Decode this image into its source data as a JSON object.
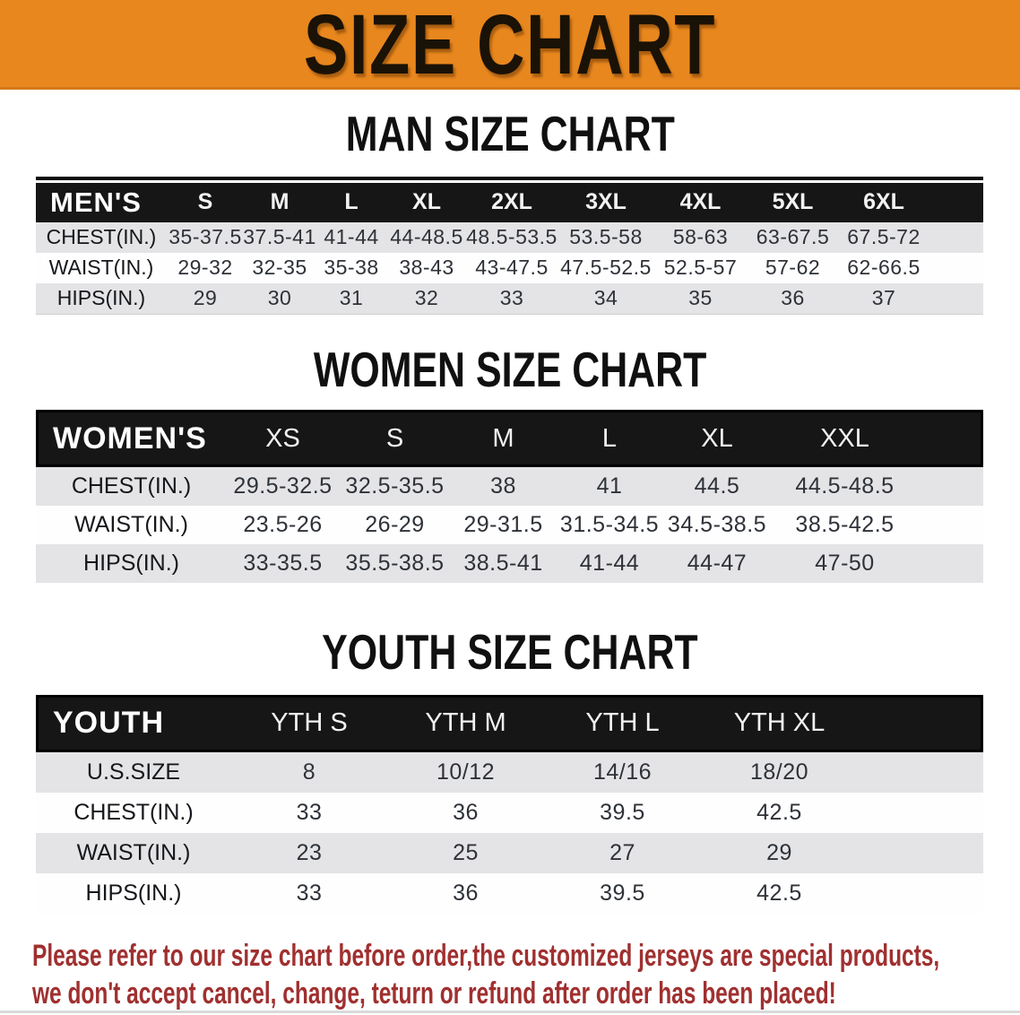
{
  "colors": {
    "banner_bg": "#E8871E",
    "header_bg": "#161616",
    "row_gray": "#E4E4E6",
    "note_red": "#A03030"
  },
  "banner": {
    "title": "SIZE CHART"
  },
  "man": {
    "heading": "MAN SIZE CHART",
    "corner": "MEN'S",
    "sizes": [
      "S",
      "M",
      "L",
      "XL",
      "2XL",
      "3XL",
      "4XL",
      "5XL",
      "6XL"
    ],
    "rows": [
      {
        "label": "CHEST(IN.)",
        "values": [
          "35-37.5",
          "37.5-41",
          "41-44",
          "44-48.5",
          "48.5-53.5",
          "53.5-58",
          "58-63",
          "63-67.5",
          "67.5-72"
        ]
      },
      {
        "label": "WAIST(IN.)",
        "values": [
          "29-32",
          "32-35",
          "35-38",
          "38-43",
          "43-47.5",
          "47.5-52.5",
          "52.5-57",
          "57-62",
          "62-66.5"
        ]
      },
      {
        "label": "HIPS(IN.)",
        "values": [
          "29",
          "30",
          "31",
          "32",
          "33",
          "34",
          "35",
          "36",
          "37"
        ]
      }
    ]
  },
  "women": {
    "heading": "WOMEN SIZE CHART",
    "corner": "WOMEN'S",
    "sizes": [
      "XS",
      "S",
      "M",
      "L",
      "XL",
      "XXL"
    ],
    "rows": [
      {
        "label": "CHEST(IN.)",
        "values": [
          "29.5-32.5",
          "32.5-35.5",
          "38",
          "41",
          "44.5",
          "44.5-48.5"
        ]
      },
      {
        "label": "WAIST(IN.)",
        "values": [
          "23.5-26",
          "26-29",
          "29-31.5",
          "31.5-34.5",
          "34.5-38.5",
          "38.5-42.5"
        ]
      },
      {
        "label": "HIPS(IN.)",
        "values": [
          "33-35.5",
          "35.5-38.5",
          "38.5-41",
          "41-44",
          "44-47",
          "47-50"
        ]
      }
    ]
  },
  "youth": {
    "heading": "YOUTH SIZE CHART",
    "corner": "YOUTH",
    "sizes": [
      "YTH S",
      "YTH M",
      "YTH L",
      "YTH XL"
    ],
    "rows": [
      {
        "label": "U.S.SIZE",
        "values": [
          "8",
          "10/12",
          "14/16",
          "18/20"
        ]
      },
      {
        "label": "CHEST(IN.)",
        "values": [
          "33",
          "36",
          "39.5",
          "42.5"
        ]
      },
      {
        "label": "WAIST(IN.)",
        "values": [
          "23",
          "25",
          "27",
          "29"
        ]
      },
      {
        "label": "HIPS(IN.)",
        "values": [
          "33",
          "36",
          "39.5",
          "42.5"
        ]
      }
    ]
  },
  "note": {
    "line1": "Please refer to our size chart before order,the customized jerseys are special products,",
    "line2": "we don't accept cancel, change, teturn or refund after order has been placed!"
  }
}
